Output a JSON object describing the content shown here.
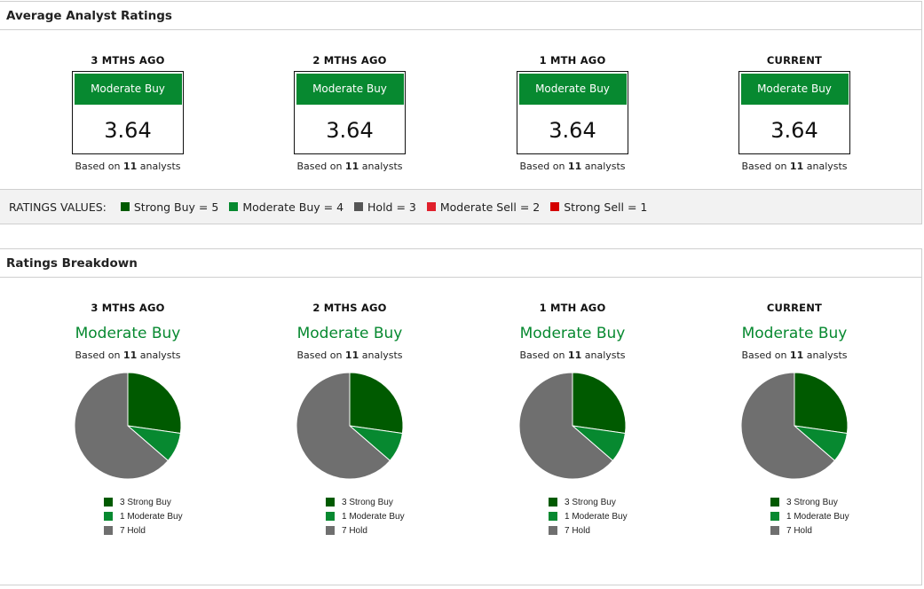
{
  "colors": {
    "strong_buy": "#005a00",
    "moderate_buy": "#078930",
    "hold": "#6f6f6f",
    "moderate_sell": "#e0202c",
    "strong_sell": "#d40000",
    "header_bar": "#078930"
  },
  "average": {
    "title": "Average Analyst Ratings",
    "cards": [
      {
        "period": "3 MTHS AGO",
        "rating": "Moderate Buy",
        "score": "3.64",
        "based_prefix": "Based on",
        "count": "11",
        "based_suffix": "analysts"
      },
      {
        "period": "2 MTHS AGO",
        "rating": "Moderate Buy",
        "score": "3.64",
        "based_prefix": "Based on",
        "count": "11",
        "based_suffix": "analysts"
      },
      {
        "period": "1 MTH AGO",
        "rating": "Moderate Buy",
        "score": "3.64",
        "based_prefix": "Based on",
        "count": "11",
        "based_suffix": "analysts"
      },
      {
        "period": "CURRENT",
        "rating": "Moderate Buy",
        "score": "3.64",
        "based_prefix": "Based on",
        "count": "11",
        "based_suffix": "analysts"
      }
    ],
    "ratings_values": {
      "label": "RATINGS VALUES:",
      "items": [
        {
          "text": "Strong Buy = 5",
          "color": "#005a00"
        },
        {
          "text": "Moderate Buy = 4",
          "color": "#078930"
        },
        {
          "text": "Hold = 3",
          "color": "#555555"
        },
        {
          "text": "Moderate Sell = 2",
          "color": "#e0202c"
        },
        {
          "text": "Strong Sell = 1",
          "color": "#d40000"
        }
      ]
    }
  },
  "breakdown": {
    "title": "Ratings Breakdown",
    "columns": [
      {
        "period": "3 MTHS AGO",
        "rating": "Moderate Buy",
        "based_prefix": "Based on",
        "count": "11",
        "based_suffix": "analysts",
        "legend": [
          "3 Strong Buy",
          "1 Moderate Buy",
          "7 Hold"
        ]
      },
      {
        "period": "2 MTHS AGO",
        "rating": "Moderate Buy",
        "based_prefix": "Based on",
        "count": "11",
        "based_suffix": "analysts",
        "legend": [
          "3 Strong Buy",
          "1 Moderate Buy",
          "7 Hold"
        ]
      },
      {
        "period": "1 MTH AGO",
        "rating": "Moderate Buy",
        "based_prefix": "Based on",
        "count": "11",
        "based_suffix": "analysts",
        "legend": [
          "3 Strong Buy",
          "1 Moderate Buy",
          "7 Hold"
        ]
      },
      {
        "period": "CURRENT",
        "rating": "Moderate Buy",
        "based_prefix": "Based on",
        "count": "11",
        "based_suffix": "analysts",
        "legend": [
          "3 Strong Buy",
          "1 Moderate Buy",
          "7 Hold"
        ]
      }
    ]
  },
  "chart_data": [
    {
      "type": "pie",
      "title": "3 MTHS AGO",
      "categories": [
        "Strong Buy",
        "Moderate Buy",
        "Hold"
      ],
      "values": [
        3,
        1,
        7
      ],
      "colors": [
        "#005a00",
        "#078930",
        "#6f6f6f"
      ]
    },
    {
      "type": "pie",
      "title": "2 MTHS AGO",
      "categories": [
        "Strong Buy",
        "Moderate Buy",
        "Hold"
      ],
      "values": [
        3,
        1,
        7
      ],
      "colors": [
        "#005a00",
        "#078930",
        "#6f6f6f"
      ]
    },
    {
      "type": "pie",
      "title": "1 MTH AGO",
      "categories": [
        "Strong Buy",
        "Moderate Buy",
        "Hold"
      ],
      "values": [
        3,
        1,
        7
      ],
      "colors": [
        "#005a00",
        "#078930",
        "#6f6f6f"
      ]
    },
    {
      "type": "pie",
      "title": "CURRENT",
      "categories": [
        "Strong Buy",
        "Moderate Buy",
        "Hold"
      ],
      "values": [
        3,
        1,
        7
      ],
      "colors": [
        "#005a00",
        "#078930",
        "#6f6f6f"
      ]
    }
  ]
}
